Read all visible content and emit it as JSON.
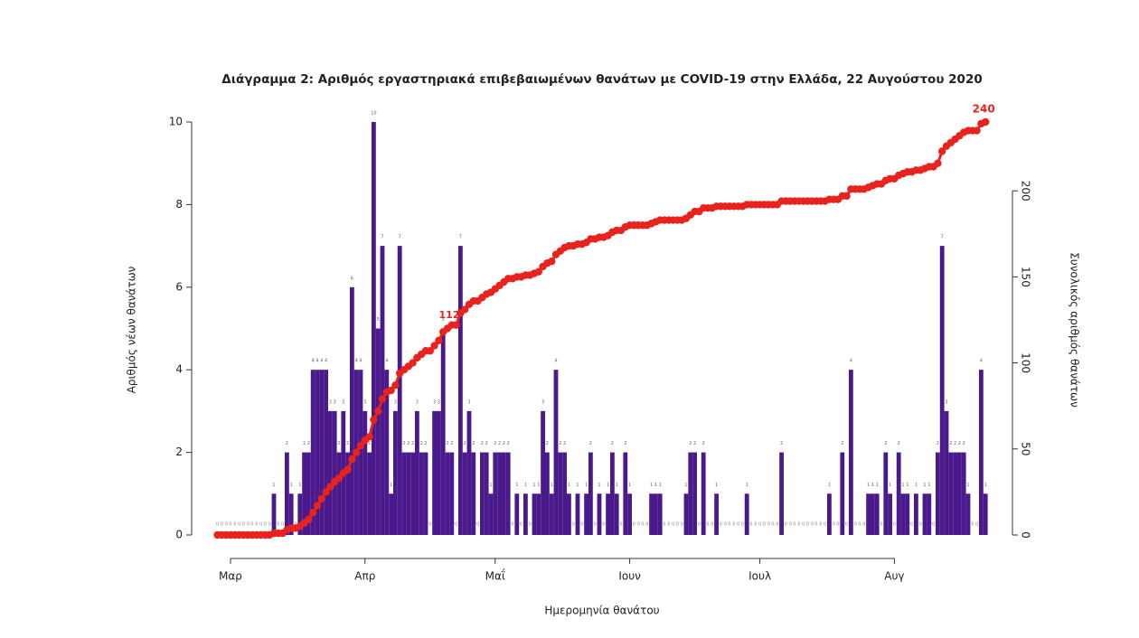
{
  "chart_data": {
    "type": "bar-line",
    "title": "Διάγραμμα 2: Αριθμός εργαστηριακά επιβεβαιωμένων θανάτων με COVID-19 στην Ελλάδα, 22 Αυγούστου 2020",
    "x_label": "Ημερομηνία θανάτου",
    "y_label": "Αριθμός νέων θανάτων",
    "y2_label": "Συνολικός αριθμός θανάτων",
    "annotations": [
      "112"
    ],
    "categories": [
      null,
      null,
      null,
      "Μαρ",
      null,
      null,
      null,
      null,
      null,
      null,
      null,
      null,
      null,
      null,
      null,
      null,
      null,
      null,
      null,
      null,
      null,
      null,
      null,
      null,
      null,
      null,
      null,
      null,
      null,
      null,
      null,
      null,
      null,
      null,
      "Απρ",
      null,
      null,
      null,
      null,
      null,
      null,
      null,
      null,
      null,
      null,
      null,
      null,
      null,
      null,
      null,
      null,
      null,
      null,
      null,
      null,
      null,
      null,
      null,
      null,
      null,
      null,
      null,
      null,
      null,
      "Μαΐ",
      null,
      null,
      null,
      null,
      null,
      null,
      null,
      null,
      null,
      null,
      null,
      null,
      null,
      null,
      null,
      null,
      null,
      null,
      null,
      null,
      null,
      null,
      null,
      null,
      null,
      null,
      null,
      null,
      null,
      null,
      "Ιουν",
      null,
      null,
      null,
      null,
      null,
      null,
      null,
      null,
      null,
      null,
      null,
      null,
      null,
      null,
      null,
      null,
      null,
      null,
      null,
      null,
      null,
      null,
      null,
      null,
      null,
      null,
      null,
      null,
      null,
      "Ιουλ",
      null,
      null,
      null,
      null,
      null,
      null,
      null,
      null,
      null,
      null,
      null,
      null,
      null,
      null,
      null,
      null,
      null,
      null,
      null,
      null,
      null,
      null,
      null,
      null,
      null,
      null,
      null,
      null,
      null,
      null,
      "Αυγ",
      null,
      null,
      null,
      null,
      null,
      null,
      null,
      null,
      null,
      null,
      null,
      null,
      null,
      null,
      null,
      null,
      null,
      null,
      null,
      null,
      null
    ],
    "series": [
      {
        "color": "#4a1a8c",
        "values": [
          0,
          0,
          0,
          0,
          0,
          0,
          0,
          0,
          0,
          0,
          0,
          0,
          0,
          1,
          0,
          0,
          2,
          1,
          0,
          1,
          2,
          2,
          4,
          4,
          4,
          4,
          3,
          3,
          2,
          3,
          2,
          6,
          4,
          4,
          3,
          2,
          10,
          5,
          7,
          4,
          1,
          3,
          7,
          2,
          2,
          2,
          3,
          2,
          2,
          0,
          3,
          3,
          5,
          2,
          2,
          0,
          7,
          2,
          3,
          2,
          0,
          2,
          2,
          1,
          2,
          2,
          2,
          2,
          0,
          1,
          0,
          1,
          0,
          1,
          1,
          3,
          2,
          1,
          4,
          2,
          2,
          1,
          0,
          1,
          0,
          1,
          2,
          0,
          1,
          0,
          1,
          2,
          1,
          0,
          2,
          1,
          0,
          0,
          0,
          0,
          1,
          1,
          1,
          0,
          0,
          0,
          0,
          0,
          1,
          2,
          2,
          0,
          2,
          0,
          0,
          1,
          0,
          0,
          0,
          0,
          0,
          0,
          1,
          0,
          0,
          0,
          0,
          0,
          0,
          0,
          2,
          0,
          0,
          0,
          0,
          0,
          0,
          0,
          0,
          0,
          0,
          1,
          0,
          0,
          2,
          0,
          4,
          0,
          0,
          0,
          1,
          1,
          1,
          0,
          2,
          1,
          0,
          2,
          1,
          1,
          0,
          1,
          0,
          1,
          1,
          0,
          2,
          7,
          3,
          2,
          2,
          2,
          2,
          1,
          0,
          0,
          4,
          1
        ]
      },
      {
        "color": "#e8221c",
        "axis": "y2",
        "values": [
          0,
          0,
          0,
          0,
          0,
          0,
          0,
          0,
          0,
          0,
          0,
          0,
          0,
          1,
          1,
          1,
          3,
          4,
          4,
          5,
          7,
          9,
          13,
          17,
          21,
          25,
          28,
          31,
          33,
          36,
          38,
          44,
          48,
          52,
          55,
          57,
          67,
          72,
          79,
          83,
          84,
          87,
          94,
          96,
          98,
          100,
          103,
          105,
          107,
          107,
          110,
          113,
          118,
          120,
          122,
          122,
          129,
          131,
          134,
          136,
          136,
          138,
          140,
          141,
          143,
          145,
          147,
          149,
          149,
          150,
          150,
          151,
          151,
          152,
          153,
          156,
          158,
          159,
          163,
          165,
          167,
          168,
          168,
          169,
          169,
          170,
          172,
          172,
          173,
          173,
          174,
          176,
          177,
          177,
          179,
          180,
          180,
          180,
          180,
          180,
          181,
          182,
          183,
          183,
          183,
          183,
          183,
          183,
          184,
          186,
          188,
          188,
          190,
          190,
          190,
          191,
          191,
          191,
          191,
          191,
          191,
          191,
          192,
          192,
          192,
          192,
          192,
          192,
          192,
          192,
          194,
          194,
          194,
          194,
          194,
          194,
          194,
          194,
          194,
          194,
          194,
          195,
          195,
          195,
          197,
          197,
          201,
          201,
          201,
          201,
          202,
          203,
          204,
          204,
          206,
          207,
          207,
          209,
          210,
          211,
          211,
          212,
          212,
          213,
          214,
          214,
          216,
          223,
          226,
          228,
          230,
          232,
          234,
          235,
          235,
          235,
          239,
          240
        ]
      }
    ],
    "ylim": [
      0,
      10
    ],
    "yticks": [
      0,
      2,
      4,
      6,
      8,
      10
    ],
    "y2lim": [
      0,
      240
    ],
    "y2ticks": [
      0,
      50,
      100,
      150,
      200
    ]
  }
}
